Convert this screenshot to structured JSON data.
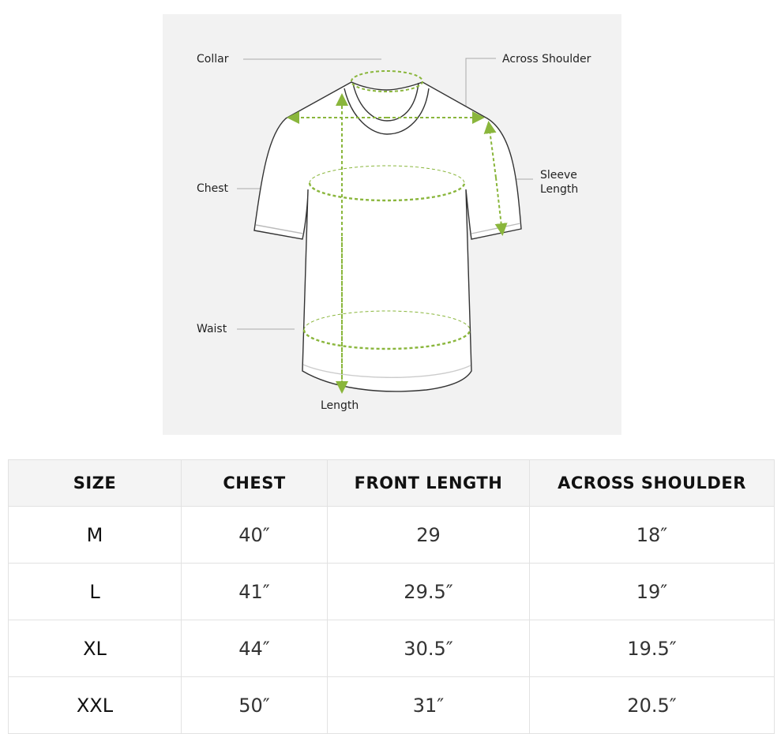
{
  "diagram": {
    "labels": {
      "collar": "Collar",
      "across_shoulder": "Across Shoulder",
      "chest": "Chest",
      "sleeve_length_1": "Sleeve",
      "sleeve_length_2": "Length",
      "waist": "Waist",
      "length": "Length"
    },
    "accent_color": "#8ab63c",
    "background_color": "#f2f2f2"
  },
  "table": {
    "headers": [
      "SIZE",
      "CHEST",
      "FRONT LENGTH",
      "ACROSS SHOULDER"
    ],
    "rows": [
      [
        "M",
        "40″",
        "29",
        "18″"
      ],
      [
        "L",
        "41″",
        "29.5″",
        "19″"
      ],
      [
        "XL",
        "44″",
        "30.5″",
        "19.5″"
      ],
      [
        "XXL",
        "50″",
        "31″",
        "20.5″"
      ]
    ]
  }
}
